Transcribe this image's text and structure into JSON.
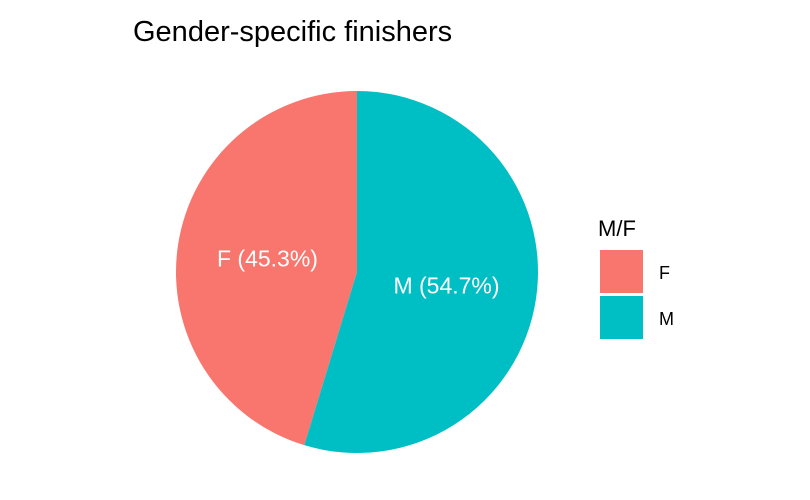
{
  "chart_data": {
    "type": "pie",
    "title": "Gender-specific finishers",
    "legend": {
      "title": "M/F",
      "placement": "right"
    },
    "slices": [
      {
        "category": "F",
        "value": 45.3,
        "label": "F (45.3%)",
        "color": "#F8766D"
      },
      {
        "category": "M",
        "value": 54.7,
        "label": "M (54.7%)",
        "color": "#00BFC4"
      }
    ]
  }
}
